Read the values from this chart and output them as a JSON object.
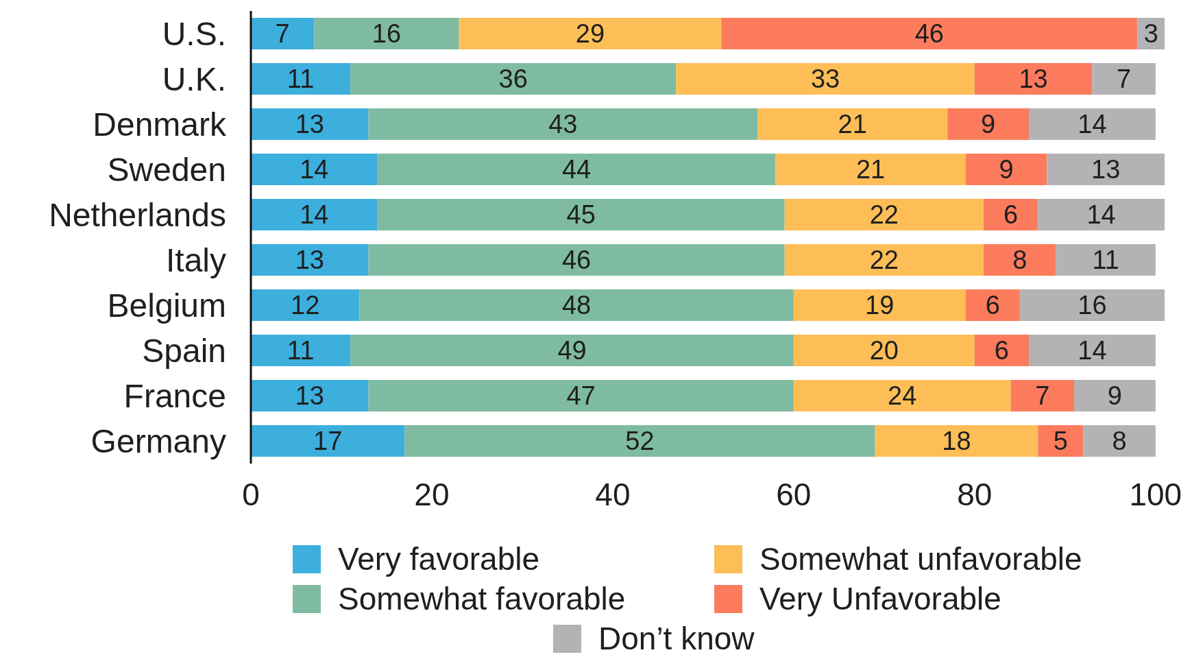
{
  "chart_data": {
    "type": "bar",
    "orientation": "horizontal",
    "stacked": true,
    "data_labels": true,
    "grid": false,
    "legend": "bottom",
    "categories": [
      "U.S.",
      "U.K.",
      "Denmark",
      "Sweden",
      "Netherlands",
      "Italy",
      "Belgium",
      "Spain",
      "France",
      "Germany"
    ],
    "series": [
      {
        "name": "Very favorable",
        "color": "#3cafdd",
        "values": [
          7,
          11,
          13,
          14,
          14,
          13,
          12,
          11,
          13,
          17
        ]
      },
      {
        "name": "Somewhat favorable",
        "color": "#7fbba1",
        "values": [
          16,
          36,
          43,
          44,
          45,
          46,
          48,
          49,
          47,
          52
        ]
      },
      {
        "name": "Somewhat unfavorable",
        "color": "#fdbe57",
        "values": [
          29,
          33,
          21,
          21,
          22,
          22,
          19,
          20,
          24,
          18
        ]
      },
      {
        "name": "Very Unfavorable",
        "color": "#fc7b5d",
        "values": [
          46,
          13,
          9,
          9,
          6,
          8,
          6,
          6,
          7,
          5
        ]
      },
      {
        "name": "Don’t know",
        "color": "#b3b3b5",
        "values": [
          3,
          7,
          14,
          13,
          14,
          11,
          16,
          14,
          9,
          8
        ]
      }
    ],
    "xlim": [
      0,
      101
    ],
    "xticks": [
      0,
      20,
      40,
      60,
      80,
      100
    ]
  }
}
